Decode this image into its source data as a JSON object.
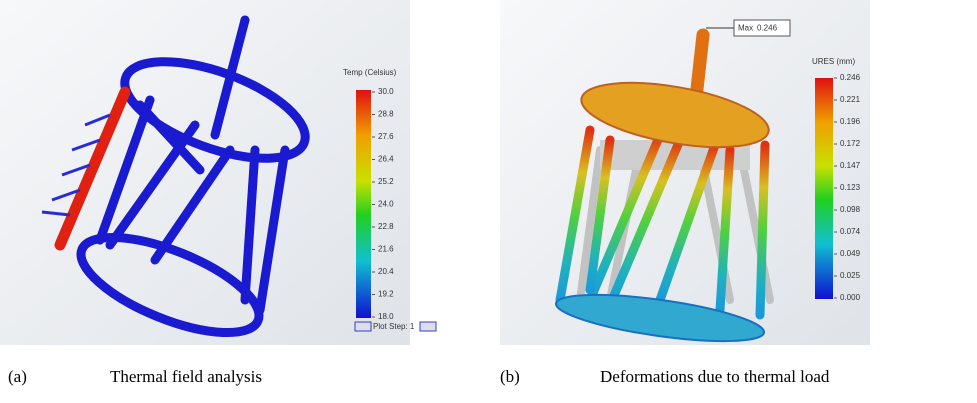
{
  "panel_a": {
    "legend_title": "Temp (Celsius)",
    "legend_labels": [
      "30.0",
      "28.8",
      "27.6",
      "26.4",
      "25.2",
      "24.0",
      "22.8",
      "21.6",
      "20.4",
      "19.2",
      "18.0"
    ],
    "plot_step": "Plot Step: 1",
    "caption_label": "(a)",
    "caption": "Thermal field analysis"
  },
  "panel_b": {
    "legend_title": "URES (mm)",
    "legend_labels": [
      "0.246",
      "0.221",
      "0.196",
      "0.172",
      "0.147",
      "0.123",
      "0.098",
      "0.074",
      "0.049",
      "0.025",
      "0.000"
    ],
    "max_label": "Max",
    "max_value": "0.246",
    "caption_label": "(b)",
    "caption": "Deformations due to thermal load"
  }
}
